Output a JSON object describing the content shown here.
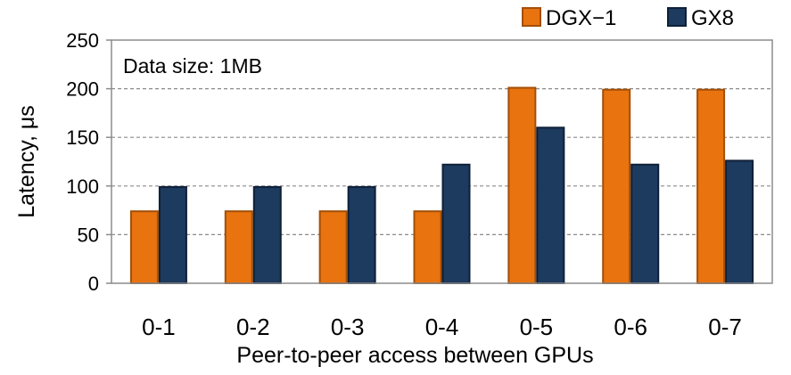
{
  "chart_data": {
    "type": "bar",
    "title": "",
    "annotation": "Data size: 1MB",
    "xlabel": "Peer-to-peer access between GPUs",
    "ylabel": "Latency, μs",
    "ylim": [
      0,
      250
    ],
    "yticks": [
      0,
      50,
      100,
      150,
      200,
      250
    ],
    "categories": [
      "0-1",
      "0-2",
      "0-3",
      "0-4",
      "0-5",
      "0-6",
      "0-7"
    ],
    "series": [
      {
        "name": "DGX−1",
        "color": "#e8730f",
        "stroke": "#a34f08",
        "values": [
          74,
          74,
          74,
          74,
          201,
          199,
          199
        ]
      },
      {
        "name": "GX8",
        "color": "#1d3a5f",
        "stroke": "#0f2038",
        "values": [
          99,
          99,
          99,
          122,
          160,
          122,
          126
        ]
      }
    ],
    "grid": true,
    "legend_position": "top-right"
  }
}
